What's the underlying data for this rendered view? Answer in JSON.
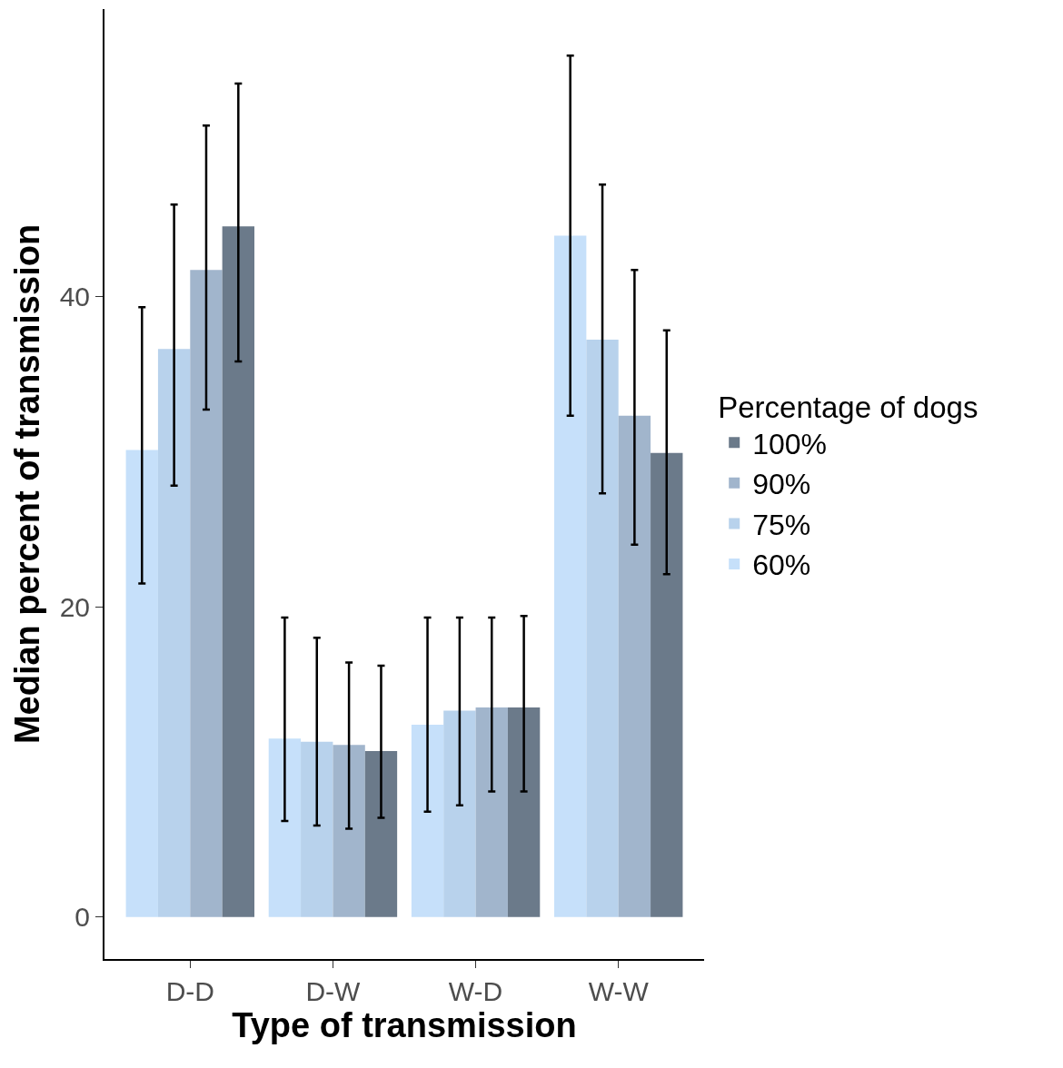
{
  "chart_data": {
    "type": "bar",
    "xlabel": "Type of transmission",
    "ylabel": "Median percent of transmission",
    "legend_title": "Percentage of dogs",
    "legend": "right",
    "categories": [
      "D-D",
      "D-W",
      "W-D",
      "W-W"
    ],
    "ylim": [
      -2.7,
      58.5
    ],
    "yticks": [
      0,
      20,
      40
    ],
    "series": [
      {
        "name": "60%",
        "color": "#c6e0fa",
        "values": [
          30.1,
          11.5,
          12.4,
          43.9
        ],
        "errors": [
          [
            21.5,
            39.3
          ],
          [
            6.2,
            19.3
          ],
          [
            6.8,
            19.3
          ],
          [
            32.3,
            55.5
          ]
        ]
      },
      {
        "name": "75%",
        "color": "#b8d2ec",
        "values": [
          36.6,
          11.3,
          13.3,
          37.2
        ],
        "errors": [
          [
            27.8,
            45.9
          ],
          [
            5.9,
            18.0
          ],
          [
            7.2,
            19.3
          ],
          [
            27.3,
            47.2
          ]
        ]
      },
      {
        "name": "90%",
        "color": "#a1b5cc",
        "values": [
          41.7,
          11.1,
          13.5,
          32.3
        ],
        "errors": [
          [
            32.7,
            51.0
          ],
          [
            5.7,
            16.4
          ],
          [
            8.1,
            19.3
          ],
          [
            24.0,
            41.7
          ]
        ]
      },
      {
        "name": "100%",
        "color": "#6b7a8a",
        "values": [
          44.5,
          10.7,
          13.5,
          29.9
        ],
        "errors": [
          [
            35.8,
            53.7
          ],
          [
            6.4,
            16.2
          ],
          [
            8.1,
            19.4
          ],
          [
            22.1,
            37.8
          ]
        ]
      }
    ]
  }
}
